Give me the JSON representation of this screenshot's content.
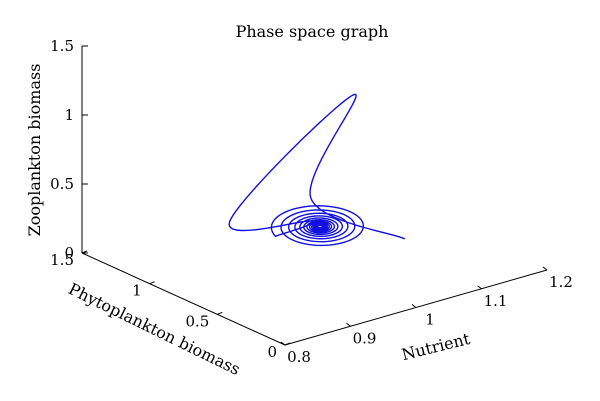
{
  "chart_data": {
    "type": "line3d",
    "title": "Phase space graph",
    "xlabel": "Nutrient",
    "ylabel": "Phytoplankton biomass",
    "zlabel": "Zooplankton biomass",
    "xlim": [
      0.8,
      1.2
    ],
    "ylim": [
      0,
      1.5
    ],
    "zlim": [
      0,
      1.5
    ],
    "xticks": [
      "0.8",
      "0.9",
      "1",
      "1.1",
      "1.2"
    ],
    "yticks": [
      "0",
      "0.5",
      "1",
      "1.5"
    ],
    "zticks": [
      "0",
      "0.5",
      "1",
      "1.5"
    ],
    "grid": false,
    "series": [
      {
        "color": "#1010e0",
        "x": [
          1.04,
          0.86,
          1.1,
          0.86,
          0.99,
          0.93,
          1.0
        ],
        "y": [
          0.28,
          0.1,
          0.94,
          0.7,
          0.72,
          0.7,
          0.71
        ],
        "z": [
          0.32,
          0.94,
          0.99,
          0.5,
          0.32,
          0.3,
          0.27
        ]
      }
    ]
  }
}
